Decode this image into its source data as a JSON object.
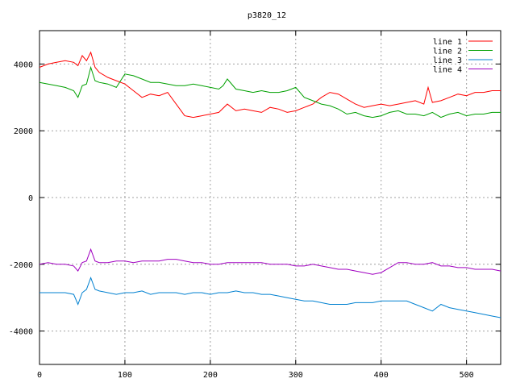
{
  "chart_data": {
    "type": "line",
    "title": "p3820_12",
    "xlabel": "",
    "ylabel": "",
    "xlim": [
      0,
      540
    ],
    "ylim": [
      -5000,
      5000
    ],
    "xticks": [
      0,
      100,
      200,
      300,
      400,
      500
    ],
    "yticks": [
      -4000,
      -2000,
      0,
      2000,
      4000
    ],
    "grid": true,
    "legend_position": "top-right",
    "series": [
      {
        "name": "line 1",
        "color": "#ff0000",
        "x": [
          0,
          10,
          20,
          30,
          40,
          45,
          50,
          55,
          60,
          65,
          70,
          80,
          90,
          100,
          110,
          120,
          130,
          140,
          150,
          160,
          170,
          180,
          190,
          200,
          210,
          220,
          230,
          240,
          250,
          260,
          270,
          280,
          290,
          300,
          310,
          320,
          330,
          340,
          350,
          360,
          370,
          380,
          390,
          400,
          410,
          420,
          430,
          440,
          450,
          455,
          460,
          470,
          480,
          490,
          500,
          510,
          520,
          530,
          540
        ],
        "y": [
          3900,
          4000,
          4050,
          4100,
          4050,
          3950,
          4250,
          4100,
          4350,
          3900,
          3750,
          3600,
          3500,
          3400,
          3200,
          3000,
          3100,
          3050,
          3150,
          2800,
          2450,
          2400,
          2450,
          2500,
          2550,
          2800,
          2600,
          2650,
          2600,
          2550,
          2700,
          2650,
          2550,
          2600,
          2700,
          2800,
          3000,
          3150,
          3100,
          2950,
          2800,
          2700,
          2750,
          2800,
          2750,
          2800,
          2850,
          2900,
          2800,
          3300,
          2850,
          2900,
          3000,
          3100,
          3050,
          3150,
          3150,
          3200,
          3200
        ]
      },
      {
        "name": "line 2",
        "color": "#00a000",
        "x": [
          0,
          10,
          20,
          30,
          40,
          45,
          50,
          55,
          60,
          65,
          70,
          80,
          90,
          100,
          110,
          120,
          130,
          140,
          150,
          160,
          170,
          180,
          190,
          200,
          210,
          215,
          220,
          230,
          240,
          250,
          260,
          270,
          280,
          290,
          300,
          310,
          320,
          330,
          340,
          350,
          360,
          370,
          380,
          390,
          400,
          410,
          420,
          430,
          440,
          450,
          460,
          470,
          480,
          490,
          500,
          510,
          520,
          530,
          540
        ],
        "y": [
          3450,
          3400,
          3350,
          3300,
          3200,
          3000,
          3350,
          3400,
          3900,
          3500,
          3450,
          3400,
          3300,
          3700,
          3650,
          3550,
          3450,
          3450,
          3400,
          3350,
          3350,
          3400,
          3350,
          3300,
          3250,
          3350,
          3550,
          3250,
          3200,
          3150,
          3200,
          3150,
          3150,
          3200,
          3300,
          3000,
          2900,
          2800,
          2750,
          2650,
          2500,
          2550,
          2450,
          2400,
          2450,
          2550,
          2600,
          2500,
          2500,
          2450,
          2550,
          2400,
          2500,
          2550,
          2450,
          2500,
          2500,
          2550,
          2550
        ]
      },
      {
        "name": "line 3",
        "color": "#0080d0",
        "x": [
          0,
          10,
          20,
          30,
          40,
          45,
          50,
          55,
          60,
          65,
          70,
          80,
          90,
          100,
          110,
          120,
          130,
          140,
          150,
          160,
          170,
          180,
          190,
          200,
          210,
          220,
          230,
          240,
          250,
          260,
          270,
          280,
          290,
          300,
          310,
          320,
          330,
          340,
          350,
          360,
          370,
          380,
          390,
          400,
          410,
          420,
          430,
          440,
          450,
          460,
          470,
          480,
          490,
          500,
          510,
          520,
          530,
          540
        ],
        "y": [
          -2850,
          -2850,
          -2850,
          -2850,
          -2900,
          -3200,
          -2850,
          -2750,
          -2400,
          -2750,
          -2800,
          -2850,
          -2900,
          -2850,
          -2850,
          -2800,
          -2900,
          -2850,
          -2850,
          -2850,
          -2900,
          -2850,
          -2850,
          -2900,
          -2850,
          -2850,
          -2800,
          -2850,
          -2850,
          -2900,
          -2900,
          -2950,
          -3000,
          -3050,
          -3100,
          -3100,
          -3150,
          -3200,
          -3200,
          -3200,
          -3150,
          -3150,
          -3150,
          -3100,
          -3100,
          -3100,
          -3100,
          -3200,
          -3300,
          -3400,
          -3200,
          -3300,
          -3350,
          -3400,
          -3450,
          -3500,
          -3550,
          -3600
        ]
      },
      {
        "name": "line 4",
        "color": "#a000c0",
        "x": [
          0,
          10,
          20,
          30,
          40,
          45,
          50,
          55,
          60,
          65,
          70,
          80,
          90,
          100,
          110,
          120,
          130,
          140,
          150,
          160,
          170,
          180,
          190,
          200,
          210,
          220,
          230,
          240,
          250,
          260,
          270,
          280,
          290,
          300,
          310,
          320,
          330,
          340,
          350,
          360,
          370,
          380,
          390,
          400,
          410,
          420,
          430,
          440,
          450,
          460,
          470,
          480,
          490,
          500,
          510,
          520,
          530,
          540
        ],
        "y": [
          -2000,
          -1950,
          -2000,
          -2000,
          -2050,
          -2200,
          -1950,
          -1900,
          -1550,
          -1900,
          -1950,
          -1950,
          -1900,
          -1900,
          -1950,
          -1900,
          -1900,
          -1900,
          -1850,
          -1850,
          -1900,
          -1950,
          -1950,
          -2000,
          -2000,
          -1950,
          -1950,
          -1950,
          -1950,
          -1950,
          -2000,
          -2000,
          -2000,
          -2050,
          -2050,
          -2000,
          -2050,
          -2100,
          -2150,
          -2150,
          -2200,
          -2250,
          -2300,
          -2250,
          -2100,
          -1950,
          -1950,
          -2000,
          -2000,
          -1950,
          -2050,
          -2050,
          -2100,
          -2100,
          -2150,
          -2150,
          -2150,
          -2200
        ]
      }
    ]
  }
}
